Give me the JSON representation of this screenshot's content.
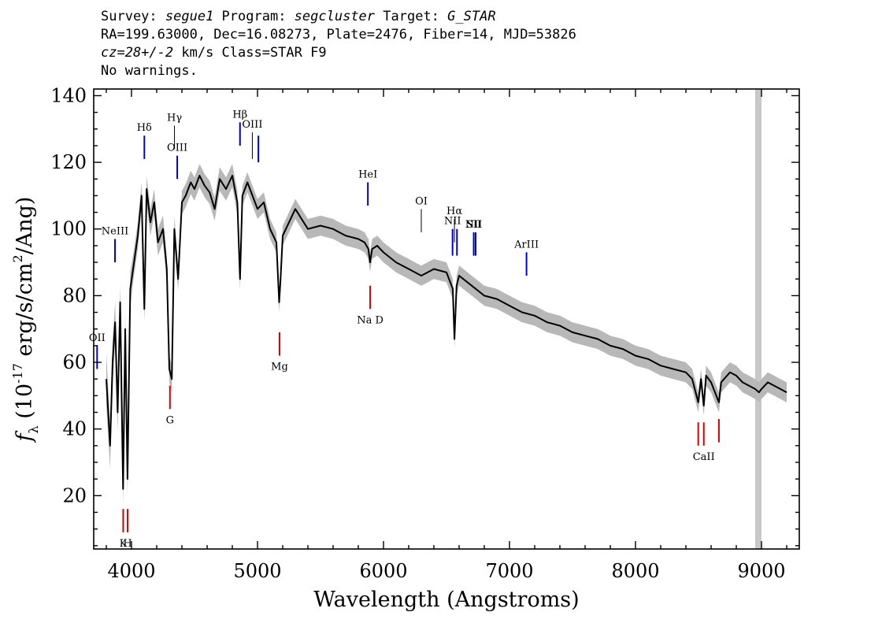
{
  "header": {
    "line1": {
      "survey_label": "Survey: ",
      "survey": "segue1",
      "program_label": " Program: ",
      "program": "segcluster",
      "target_label": " Target: ",
      "target": "G_STAR"
    },
    "line2": "RA=199.63000, Dec=16.08273, Plate=2476, Fiber=14, MJD=53826",
    "line3": {
      "cz": "cz=28+/-2",
      "rest": " km/s Class=STAR F9"
    },
    "line4": "No warnings."
  },
  "chart_data": {
    "type": "line",
    "xlabel": "Wavelength (Angstroms)",
    "ylabel": "f_λ (10^-17 erg/s/cm^2/Ang)",
    "xlim": [
      3700,
      9300
    ],
    "ylim": [
      4,
      142
    ],
    "xticks": [
      4000,
      5000,
      6000,
      7000,
      8000,
      9000
    ],
    "yticks": [
      20,
      40,
      60,
      80,
      100,
      120,
      140
    ],
    "colors": {
      "flux": "#000000",
      "error_band": "#b8b8b8",
      "masked_band": "#c8c8c8",
      "emission_lines": "#0000cc",
      "absorption_lines": "#dd0000",
      "other_lines": "#000000"
    },
    "masked_region": [
      8950,
      9000
    ],
    "series": [
      {
        "x": [
          3800,
          3830,
          3850,
          3870,
          3890,
          3910,
          3933,
          3950,
          3968,
          3990,
          4020,
          4050,
          4080,
          4102,
          4120,
          4150,
          4180,
          4210,
          4250,
          4280,
          4300,
          4320,
          4340,
          4370,
          4400,
          4430,
          4470,
          4500,
          4540,
          4580,
          4620,
          4660,
          4700,
          4750,
          4800,
          4840,
          4861,
          4880,
          4920,
          4960,
          5000,
          5050,
          5100,
          5150,
          5172,
          5183,
          5200,
          5250,
          5300,
          5400,
          5500,
          5600,
          5700,
          5800,
          5850,
          5880,
          5893,
          5910,
          5950,
          6000,
          6100,
          6200,
          6300,
          6400,
          6500,
          6550,
          6563,
          6580,
          6600,
          6700,
          6800,
          6900,
          7000,
          7100,
          7200,
          7300,
          7400,
          7500,
          7600,
          7700,
          7800,
          7900,
          8000,
          8100,
          8200,
          8300,
          8400,
          8450,
          8498,
          8520,
          8542,
          8560,
          8600,
          8662,
          8680,
          8750,
          8800,
          8850,
          8900,
          8950,
          8980,
          9000,
          9050,
          9100,
          9150,
          9200
        ],
        "y": [
          55,
          35,
          60,
          72,
          45,
          78,
          22,
          70,
          25,
          82,
          90,
          98,
          110,
          76,
          112,
          102,
          108,
          96,
          100,
          88,
          58,
          55,
          100,
          85,
          108,
          110,
          114,
          112,
          116,
          113,
          111,
          106,
          115,
          112,
          116,
          108,
          85,
          110,
          114,
          110,
          106,
          108,
          100,
          96,
          78,
          85,
          98,
          102,
          106,
          100,
          101,
          100,
          98,
          97,
          96,
          94,
          90,
          94,
          95,
          93,
          90,
          88,
          86,
          88,
          87,
          82,
          67,
          83,
          86,
          83,
          80,
          79,
          77,
          75,
          74,
          72,
          71,
          69,
          68,
          67,
          65,
          64,
          62,
          61,
          59,
          58,
          57,
          55,
          48,
          55,
          47,
          56,
          54,
          48,
          54,
          57,
          56,
          54,
          53,
          52,
          51,
          52,
          54,
          53,
          52,
          51
        ],
        "error": [
          8,
          7,
          7,
          6,
          6,
          5,
          5,
          5,
          5,
          5,
          4,
          4,
          4,
          4,
          4,
          4,
          4,
          4,
          4,
          4,
          4,
          4,
          4,
          3.5,
          3.5,
          3.5,
          3.5,
          3.5,
          3.5,
          3.5,
          3.5,
          3.5,
          3.5,
          3.5,
          3.5,
          3.5,
          3.5,
          3,
          3,
          3,
          3,
          3,
          3,
          3,
          3,
          3,
          3,
          3,
          3,
          3,
          3,
          3,
          3,
          3,
          3,
          3,
          3,
          3,
          3,
          3,
          3,
          3,
          3,
          3,
          3,
          3,
          3,
          3,
          3,
          3,
          3,
          3,
          3,
          3,
          3,
          3,
          3,
          3,
          3,
          3,
          3,
          3,
          3,
          3,
          3,
          3,
          3,
          3,
          3,
          3,
          3,
          3,
          3,
          3,
          3,
          3,
          3,
          3,
          3,
          3,
          3,
          3,
          3,
          3,
          3,
          3
        ]
      }
    ],
    "line_markers": [
      {
        "label": "OII",
        "wavelength": 3727,
        "type": "emission",
        "y_top": 65,
        "y_bottom": 58
      },
      {
        "label": "NeIII",
        "wavelength": 3869,
        "type": "emission",
        "y_top": 97,
        "y_bottom": 90
      },
      {
        "label": "Hδ",
        "wavelength": 4102,
        "type": "emission",
        "y_top": 128,
        "y_bottom": 121
      },
      {
        "label": "Hγ",
        "wavelength": 4341,
        "type": "other",
        "y_top": 131,
        "y_bottom": 124
      },
      {
        "label": "OIII",
        "wavelength": 4363,
        "type": "emission",
        "y_top": 122,
        "y_bottom": 115
      },
      {
        "label": "Hβ",
        "wavelength": 4861,
        "type": "emission",
        "y_top": 132,
        "y_bottom": 125
      },
      {
        "label": "OIII",
        "wavelength": 4959,
        "type": "other",
        "y_top": 129,
        "y_bottom": 121
      },
      {
        "label": "",
        "wavelength": 5007,
        "type": "emission",
        "y_top": 128,
        "y_bottom": 120
      },
      {
        "label": "HeI",
        "wavelength": 5876,
        "type": "emission",
        "y_top": 114,
        "y_bottom": 107
      },
      {
        "label": "OI",
        "wavelength": 6300,
        "type": "other",
        "y_top": 106,
        "y_bottom": 99
      },
      {
        "label": "NII",
        "wavelength": 6548,
        "type": "emission",
        "y_top": 100,
        "y_bottom": 92
      },
      {
        "label": "Hα",
        "wavelength": 6563,
        "type": "other",
        "y_top": 103,
        "y_bottom": 96
      },
      {
        "label": "",
        "wavelength": 6583,
        "type": "emission",
        "y_top": 100,
        "y_bottom": 92
      },
      {
        "label": "NII",
        "wavelength": 6716,
        "type": "other",
        "y_top": 99,
        "y_bottom": 92
      },
      {
        "label": "SII",
        "wavelength": 6716,
        "type": "emission",
        "y_top": 99,
        "y_bottom": 92
      },
      {
        "label": "",
        "wavelength": 6731,
        "type": "emission",
        "y_top": 99,
        "y_bottom": 92
      },
      {
        "label": "ArIII",
        "wavelength": 7135,
        "type": "emission",
        "y_top": 93,
        "y_bottom": 86
      },
      {
        "label": "K",
        "wavelength": 3934,
        "type": "absorption",
        "y_top": 16,
        "y_bottom": 9
      },
      {
        "label": "H",
        "wavelength": 3969,
        "type": "absorption",
        "y_top": 16,
        "y_bottom": 9
      },
      {
        "label": "G",
        "wavelength": 4305,
        "type": "absorption",
        "y_top": 53,
        "y_bottom": 46
      },
      {
        "label": "Mg",
        "wavelength": 5175,
        "type": "absorption",
        "y_top": 69,
        "y_bottom": 62
      },
      {
        "label": "Na D",
        "wavelength": 5894,
        "type": "absorption",
        "y_top": 83,
        "y_bottom": 76
      },
      {
        "label": "",
        "wavelength": 8498,
        "type": "absorption",
        "y_top": 42,
        "y_bottom": 35
      },
      {
        "label": "CaII",
        "wavelength": 8542,
        "type": "absorption",
        "y_top": 42,
        "y_bottom": 35
      },
      {
        "label": "",
        "wavelength": 8662,
        "type": "absorption",
        "y_top": 43,
        "y_bottom": 36
      }
    ]
  }
}
